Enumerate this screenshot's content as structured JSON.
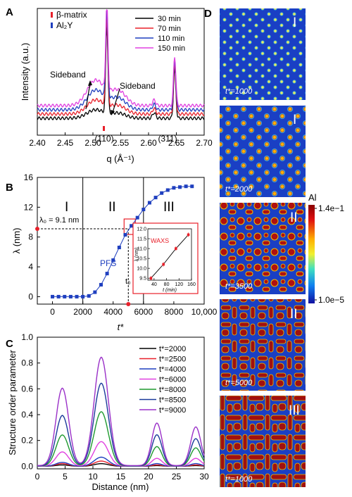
{
  "panels": {
    "a": {
      "letter": "A"
    },
    "b": {
      "letter": "B"
    },
    "c": {
      "letter": "C"
    },
    "d": {
      "letter": "D"
    }
  },
  "chart_data": [
    {
      "id": "a",
      "type": "line",
      "xlabel": "q (Å⁻¹)",
      "ylabel": "Intensity (a.u.)",
      "xlim": [
        2.4,
        2.7
      ],
      "xticks": [
        "2.40",
        "2.45",
        "2.50",
        "2.55",
        "2.60",
        "2.65",
        "2.70"
      ],
      "marker_legend": [
        {
          "label": "β-matrix",
          "color": "#e8202a"
        },
        {
          "label": "Al₂Y",
          "color": "#1f3fbf"
        }
      ],
      "series": [
        {
          "name": "30 min",
          "color": "#000000"
        },
        {
          "name": "70 min",
          "color": "#e8202a"
        },
        {
          "name": "110 min",
          "color": "#1f3fbf"
        },
        {
          "name": "150 min",
          "color": "#e040e0"
        }
      ],
      "annotations": {
        "sideband_left": "Sideband",
        "sideband_right": "Sideband",
        "peak_110": "(110)",
        "peak_311": "(311)"
      },
      "peaks": {
        "q110": 2.525,
        "q311": 2.647,
        "sideband_left": 2.505,
        "sideband_right": 2.545
      }
    },
    {
      "id": "b",
      "type": "line",
      "xlabel": "t*",
      "ylabel": "λ (nm)",
      "xlim": [
        -1000,
        10000
      ],
      "ylim": [
        -1,
        16
      ],
      "xticks": [
        "0",
        "2000",
        "4000",
        "6000",
        "8000",
        "10,000"
      ],
      "yticks": [
        "0",
        "4",
        "8",
        "12",
        "16"
      ],
      "stages": [
        "I",
        "II",
        "III"
      ],
      "stage_boundaries": [
        2000,
        6000
      ],
      "lambda0_label": "λ₀ = 9.1 nm",
      "lambda0": 9.1,
      "t0_label": "t₀",
      "t0": 5000,
      "pfs_label": "PFS",
      "x": [
        0,
        400,
        800,
        1200,
        1600,
        2000,
        2400,
        2800,
        3200,
        3600,
        4000,
        4400,
        4800,
        5200,
        5600,
        6000,
        6400,
        6800,
        7200,
        7600,
        8000,
        8400,
        8800,
        9200
      ],
      "y": [
        0,
        0,
        0,
        0,
        0,
        0,
        0.1,
        0.6,
        1.6,
        3.1,
        4.9,
        6.6,
        8.3,
        9.5,
        10.6,
        11.7,
        12.6,
        13.3,
        13.9,
        14.3,
        14.6,
        14.7,
        14.8,
        14.8
      ],
      "inset": {
        "title": "WAXS",
        "xlabel": "t (min)",
        "ylabel": "λ (nm)",
        "xlim": [
          20,
          160
        ],
        "ylim": [
          9.4,
          12.0
        ],
        "xticks": [
          "40",
          "80",
          "120",
          "160"
        ],
        "yticks": [
          "9.5",
          "10.0",
          "10.5",
          "11.0",
          "11.5",
          "12.0"
        ],
        "x": [
          30,
          70,
          110,
          150
        ],
        "y": [
          9.5,
          10.2,
          11.0,
          11.7
        ]
      }
    },
    {
      "id": "c",
      "type": "line",
      "xlabel": "Distance (nm)",
      "ylabel": "Structure order parameter",
      "xlim": [
        0,
        30
      ],
      "ylim": [
        -0.02,
        1.0
      ],
      "xticks": [
        "0",
        "5",
        "10",
        "15",
        "20",
        "25",
        "30"
      ],
      "yticks": [
        "0.0",
        "0.2",
        "0.4",
        "0.6",
        "0.8",
        "1.0"
      ],
      "peak_positions": [
        4.5,
        11.5,
        21.5,
        28.5
      ],
      "series": [
        {
          "name": "t*=2000",
          "color": "#000000",
          "peaks": [
            0.01,
            0.02,
            0.005,
            0.005
          ]
        },
        {
          "name": "t*=2500",
          "color": "#e8202a",
          "peaks": [
            0.02,
            0.04,
            0.01,
            0.01
          ]
        },
        {
          "name": "t*=4000",
          "color": "#1f3fbf",
          "peaks": [
            0.03,
            0.07,
            0.02,
            0.02
          ]
        },
        {
          "name": "t*=6000",
          "color": "#e040e0",
          "peaks": [
            0.11,
            0.19,
            0.06,
            0.06
          ]
        },
        {
          "name": "t*=8000",
          "color": "#1f9a2f",
          "peaks": [
            0.24,
            0.42,
            0.15,
            0.14
          ]
        },
        {
          "name": "t*=8500",
          "color": "#1a3a9a",
          "peaks": [
            0.39,
            0.64,
            0.24,
            0.21
          ]
        },
        {
          "name": "t*=9000",
          "color": "#9a30c8",
          "peaks": [
            0.6,
            0.84,
            0.33,
            0.3
          ]
        }
      ]
    }
  ],
  "panel_d": {
    "colorbar": {
      "title": "Al",
      "max": "1.4e−1",
      "min": "1.0e−5"
    },
    "snapshots": [
      {
        "time": "t*=1000",
        "stage": "I"
      },
      {
        "time": "t*=2000",
        "stage": "I"
      },
      {
        "time": "t*=3500",
        "stage": "II"
      },
      {
        "time": "t*=5000",
        "stage": "II"
      },
      {
        "time": "t*=1000",
        "stage": "III"
      }
    ]
  }
}
